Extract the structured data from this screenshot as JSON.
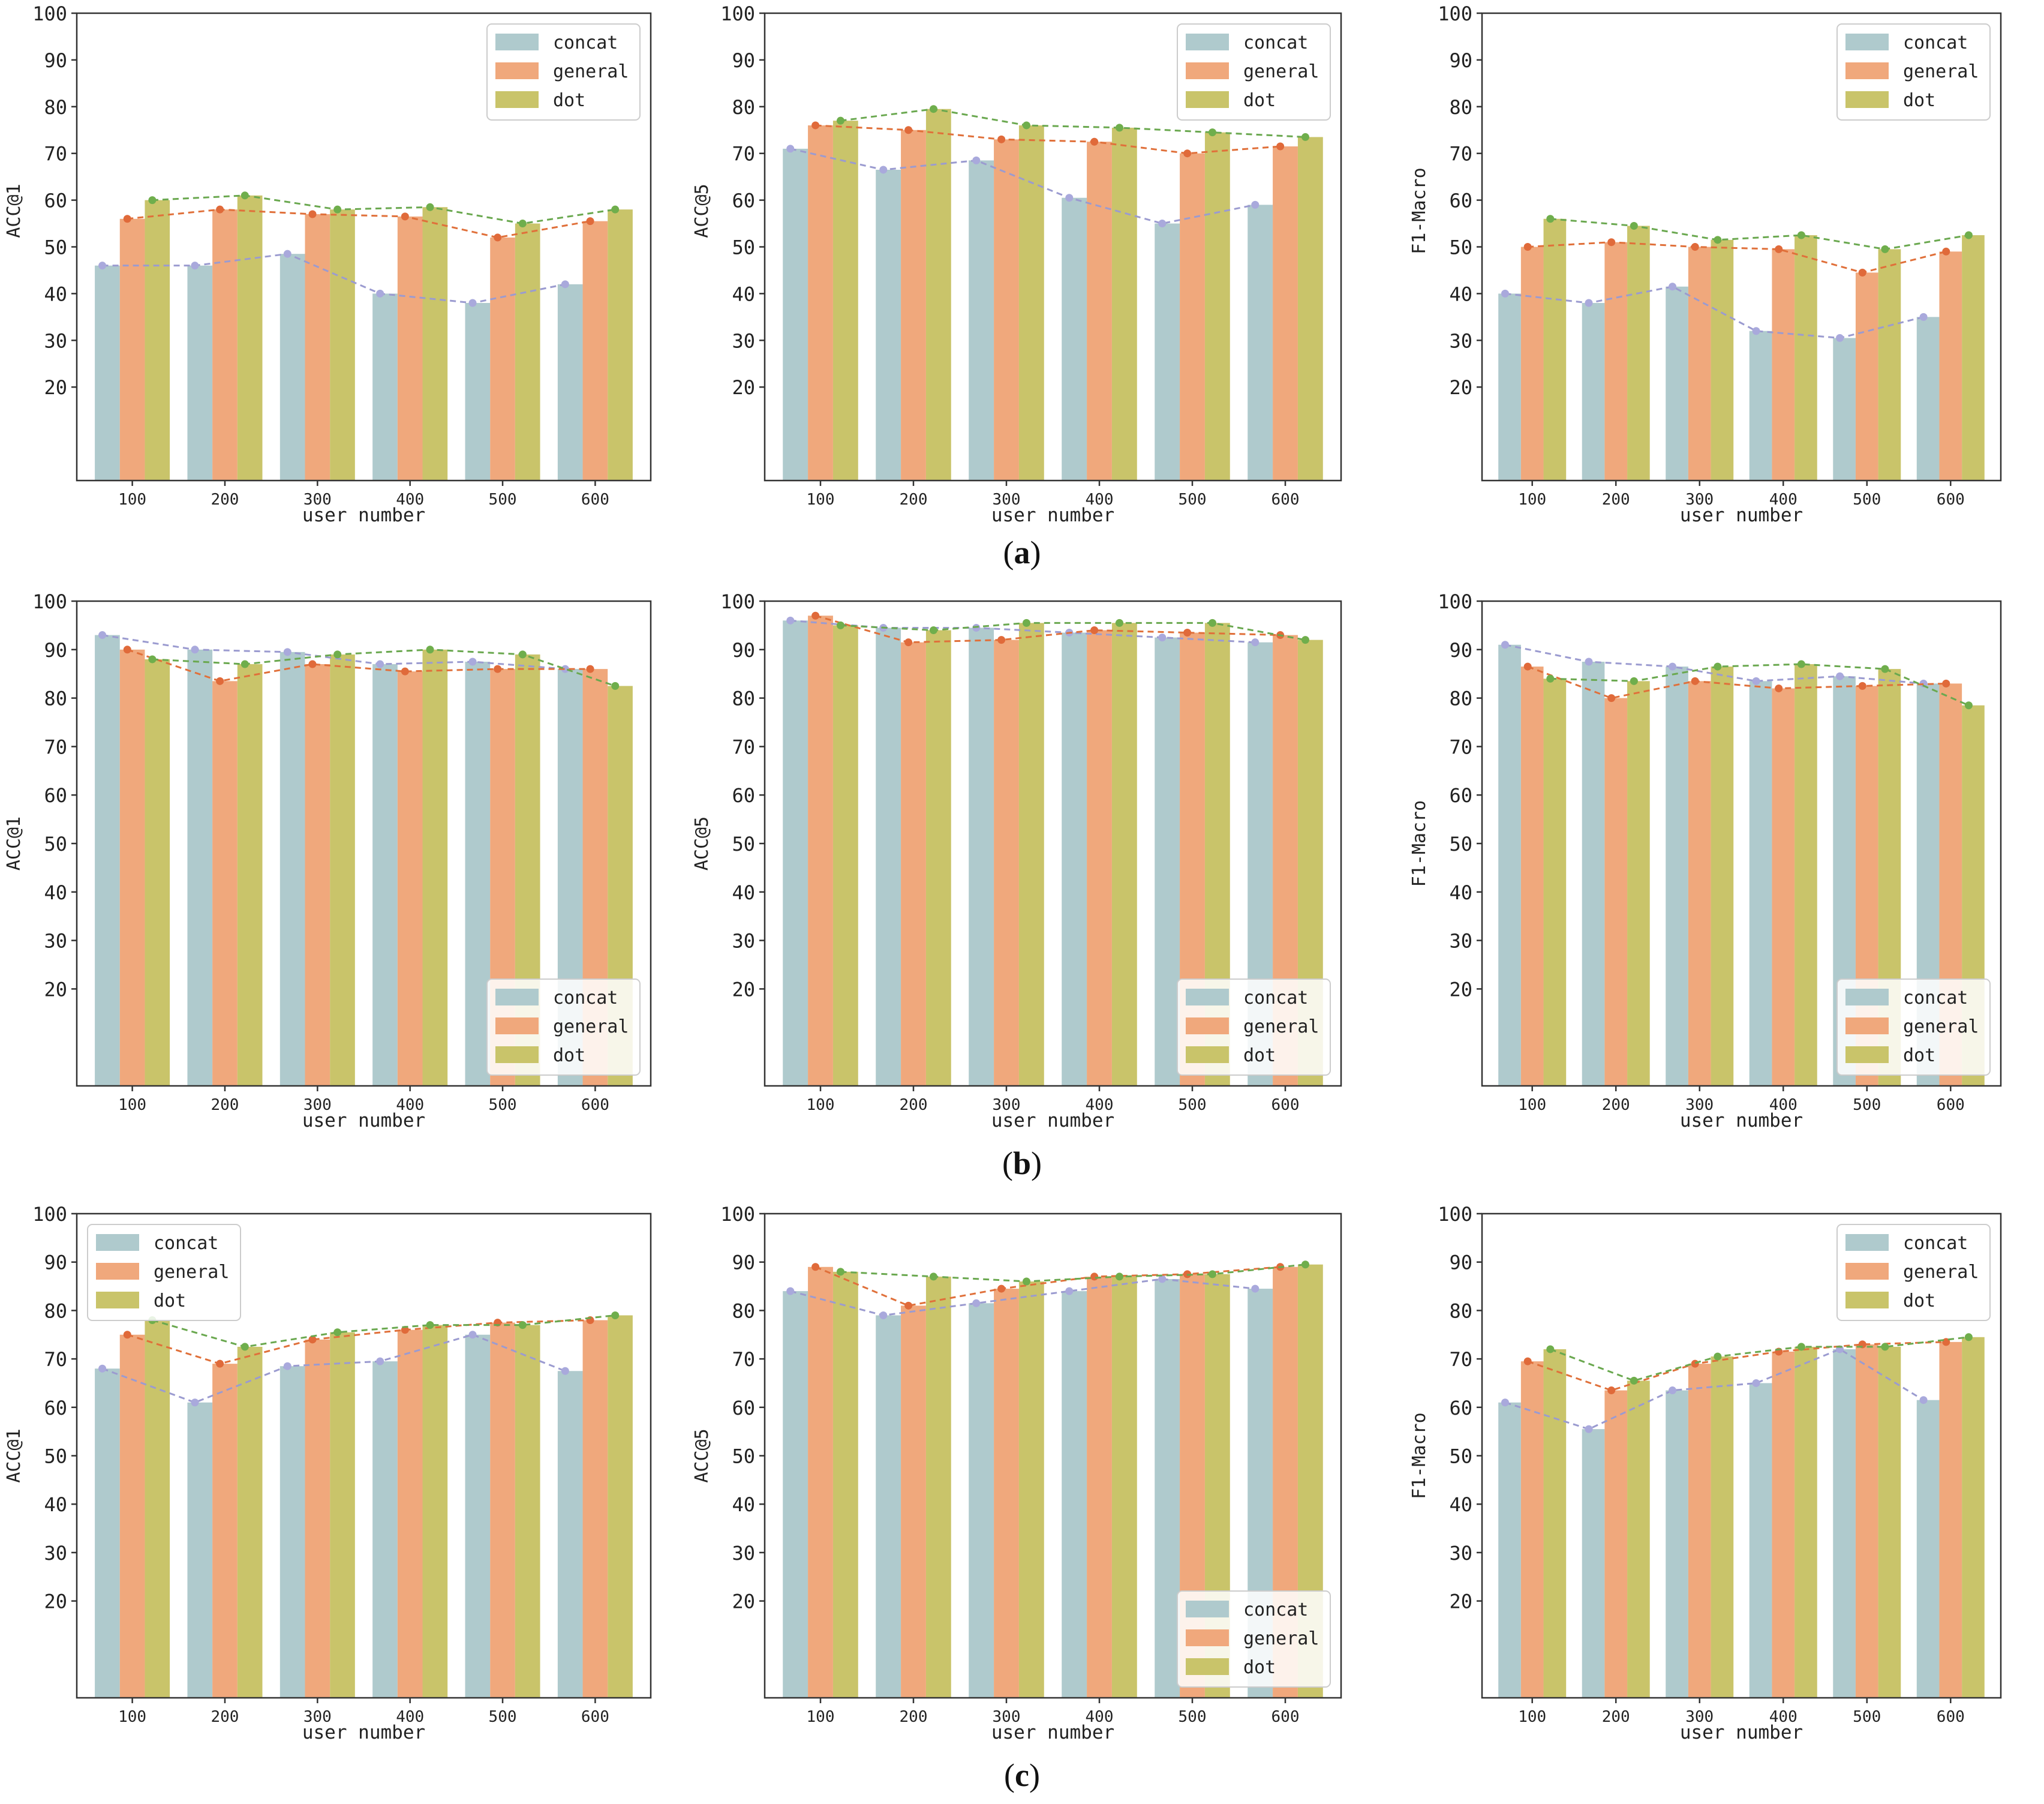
{
  "colors": {
    "concat": "#afcacd",
    "general": "#f0a87c",
    "dot": "#c9c46a",
    "concat_line": "#9b9bd0",
    "general_line": "#e0703a",
    "dot_line": "#6aa84f",
    "marker_concat": "#a9a9dc",
    "marker_general": "#e06a3a",
    "marker_dot": "#6fae4c",
    "axis": "#333333"
  },
  "captions": [
    "a",
    "b",
    "c"
  ],
  "chart_data": [
    {
      "id": "a-acc1",
      "row": 0,
      "col": 0,
      "type": "bar",
      "categories": [
        "100",
        "200",
        "300",
        "400",
        "500",
        "600"
      ],
      "xlabel": "user number",
      "ylabel": "ACC@1",
      "ylim": [
        0,
        100
      ],
      "yticks": [
        20,
        30,
        40,
        50,
        60,
        70,
        80,
        90,
        100
      ],
      "legend": "top-right",
      "series": [
        {
          "name": "concat",
          "values": [
            46,
            46,
            48.5,
            40,
            38,
            42
          ]
        },
        {
          "name": "general",
          "values": [
            56,
            58,
            57,
            56.5,
            52,
            55.5
          ]
        },
        {
          "name": "dot",
          "values": [
            60,
            61,
            58,
            58.5,
            55,
            58
          ]
        }
      ]
    },
    {
      "id": "a-acc5",
      "row": 0,
      "col": 1,
      "type": "bar",
      "categories": [
        "100",
        "200",
        "300",
        "400",
        "500",
        "600"
      ],
      "xlabel": "user number",
      "ylabel": "ACC@5",
      "ylim": [
        0,
        100
      ],
      "yticks": [
        20,
        30,
        40,
        50,
        60,
        70,
        80,
        90,
        100
      ],
      "legend": "top-right",
      "series": [
        {
          "name": "concat",
          "values": [
            71,
            66.5,
            68.5,
            60.5,
            55,
            59
          ]
        },
        {
          "name": "general",
          "values": [
            76,
            75,
            73,
            72.5,
            70,
            71.5
          ]
        },
        {
          "name": "dot",
          "values": [
            77,
            79.5,
            76,
            75.5,
            74.5,
            73.5
          ]
        }
      ]
    },
    {
      "id": "a-f1",
      "row": 0,
      "col": 2,
      "type": "bar",
      "categories": [
        "100",
        "200",
        "300",
        "400",
        "500",
        "600"
      ],
      "xlabel": "user number",
      "ylabel": "F1-Macro",
      "ylim": [
        0,
        100
      ],
      "yticks": [
        20,
        30,
        40,
        50,
        60,
        70,
        80,
        90,
        100
      ],
      "legend": "top-right",
      "series": [
        {
          "name": "concat",
          "values": [
            40,
            38,
            41.5,
            32,
            30.5,
            35
          ]
        },
        {
          "name": "general",
          "values": [
            50,
            51,
            50,
            49.5,
            44.5,
            49
          ]
        },
        {
          "name": "dot",
          "values": [
            56,
            54.5,
            51.5,
            52.5,
            49.5,
            52.5
          ]
        }
      ]
    },
    {
      "id": "b-acc1",
      "row": 1,
      "col": 0,
      "type": "bar",
      "categories": [
        "100",
        "200",
        "300",
        "400",
        "500",
        "600"
      ],
      "xlabel": "user number",
      "ylabel": "ACC@1",
      "ylim": [
        0,
        100
      ],
      "yticks": [
        20,
        30,
        40,
        50,
        60,
        70,
        80,
        90,
        100
      ],
      "legend": "bottom-right",
      "series": [
        {
          "name": "concat",
          "values": [
            93,
            90,
            89.5,
            87,
            87.5,
            86
          ]
        },
        {
          "name": "general",
          "values": [
            90,
            83.5,
            87,
            85.5,
            86,
            86
          ]
        },
        {
          "name": "dot",
          "values": [
            88,
            87,
            89,
            90,
            89,
            82.5
          ]
        }
      ]
    },
    {
      "id": "b-acc5",
      "row": 1,
      "col": 1,
      "type": "bar",
      "categories": [
        "100",
        "200",
        "300",
        "400",
        "500",
        "600"
      ],
      "xlabel": "user number",
      "ylabel": "ACC@5",
      "ylim": [
        0,
        100
      ],
      "yticks": [
        20,
        30,
        40,
        50,
        60,
        70,
        80,
        90,
        100
      ],
      "legend": "bottom-right",
      "series": [
        {
          "name": "concat",
          "values": [
            96,
            94.5,
            94.5,
            93.5,
            92.5,
            91.5
          ]
        },
        {
          "name": "general",
          "values": [
            97,
            91.5,
            92,
            94,
            93.5,
            93
          ]
        },
        {
          "name": "dot",
          "values": [
            95,
            94,
            95.5,
            95.5,
            95.5,
            92
          ]
        }
      ]
    },
    {
      "id": "b-f1",
      "row": 1,
      "col": 2,
      "type": "bar",
      "categories": [
        "100",
        "200",
        "300",
        "400",
        "500",
        "600"
      ],
      "xlabel": "user number",
      "ylabel": "F1-Macro",
      "ylim": [
        0,
        100
      ],
      "yticks": [
        20,
        30,
        40,
        50,
        60,
        70,
        80,
        90,
        100
      ],
      "legend": "bottom-right",
      "series": [
        {
          "name": "concat",
          "values": [
            91,
            87.5,
            86.5,
            83.5,
            84.5,
            83
          ]
        },
        {
          "name": "general",
          "values": [
            86.5,
            80,
            83.5,
            82,
            82.5,
            83
          ]
        },
        {
          "name": "dot",
          "values": [
            84,
            83.5,
            86.5,
            87,
            86,
            78.5
          ]
        }
      ]
    },
    {
      "id": "c-acc1",
      "row": 2,
      "col": 0,
      "type": "bar",
      "categories": [
        "100",
        "200",
        "300",
        "400",
        "500",
        "600"
      ],
      "xlabel": "user number",
      "ylabel": "ACC@1",
      "ylim": [
        0,
        100
      ],
      "yticks": [
        20,
        30,
        40,
        50,
        60,
        70,
        80,
        90,
        100
      ],
      "legend": "top-left",
      "series": [
        {
          "name": "concat",
          "values": [
            68,
            61,
            68.5,
            69.5,
            75,
            67.5
          ]
        },
        {
          "name": "general",
          "values": [
            75,
            69,
            74,
            76,
            77.5,
            78
          ]
        },
        {
          "name": "dot",
          "values": [
            78,
            72.5,
            75.5,
            77,
            77,
            79
          ]
        }
      ]
    },
    {
      "id": "c-acc5",
      "row": 2,
      "col": 1,
      "type": "bar",
      "categories": [
        "100",
        "200",
        "300",
        "400",
        "500",
        "600"
      ],
      "xlabel": "user number",
      "ylabel": "ACC@5",
      "ylim": [
        0,
        100
      ],
      "yticks": [
        20,
        30,
        40,
        50,
        60,
        70,
        80,
        90,
        100
      ],
      "legend": "bottom-right",
      "series": [
        {
          "name": "concat",
          "values": [
            84,
            79,
            81.5,
            84,
            86.5,
            84.5
          ]
        },
        {
          "name": "general",
          "values": [
            89,
            81,
            84.5,
            87,
            87.5,
            89
          ]
        },
        {
          "name": "dot",
          "values": [
            88,
            87,
            86,
            87,
            87.5,
            89.5
          ]
        }
      ]
    },
    {
      "id": "c-f1",
      "row": 2,
      "col": 2,
      "type": "bar",
      "categories": [
        "100",
        "200",
        "300",
        "400",
        "500",
        "600"
      ],
      "xlabel": "user number",
      "ylabel": "F1-Macro",
      "ylim": [
        0,
        100
      ],
      "yticks": [
        20,
        30,
        40,
        50,
        60,
        70,
        80,
        90,
        100
      ],
      "legend": "top-right",
      "series": [
        {
          "name": "concat",
          "values": [
            61,
            55.5,
            63.5,
            65,
            72,
            61.5
          ]
        },
        {
          "name": "general",
          "values": [
            69.5,
            63.5,
            69,
            71.5,
            73,
            73.5
          ]
        },
        {
          "name": "dot",
          "values": [
            72,
            65.5,
            70.5,
            72.5,
            72.5,
            74.5
          ]
        }
      ]
    }
  ]
}
